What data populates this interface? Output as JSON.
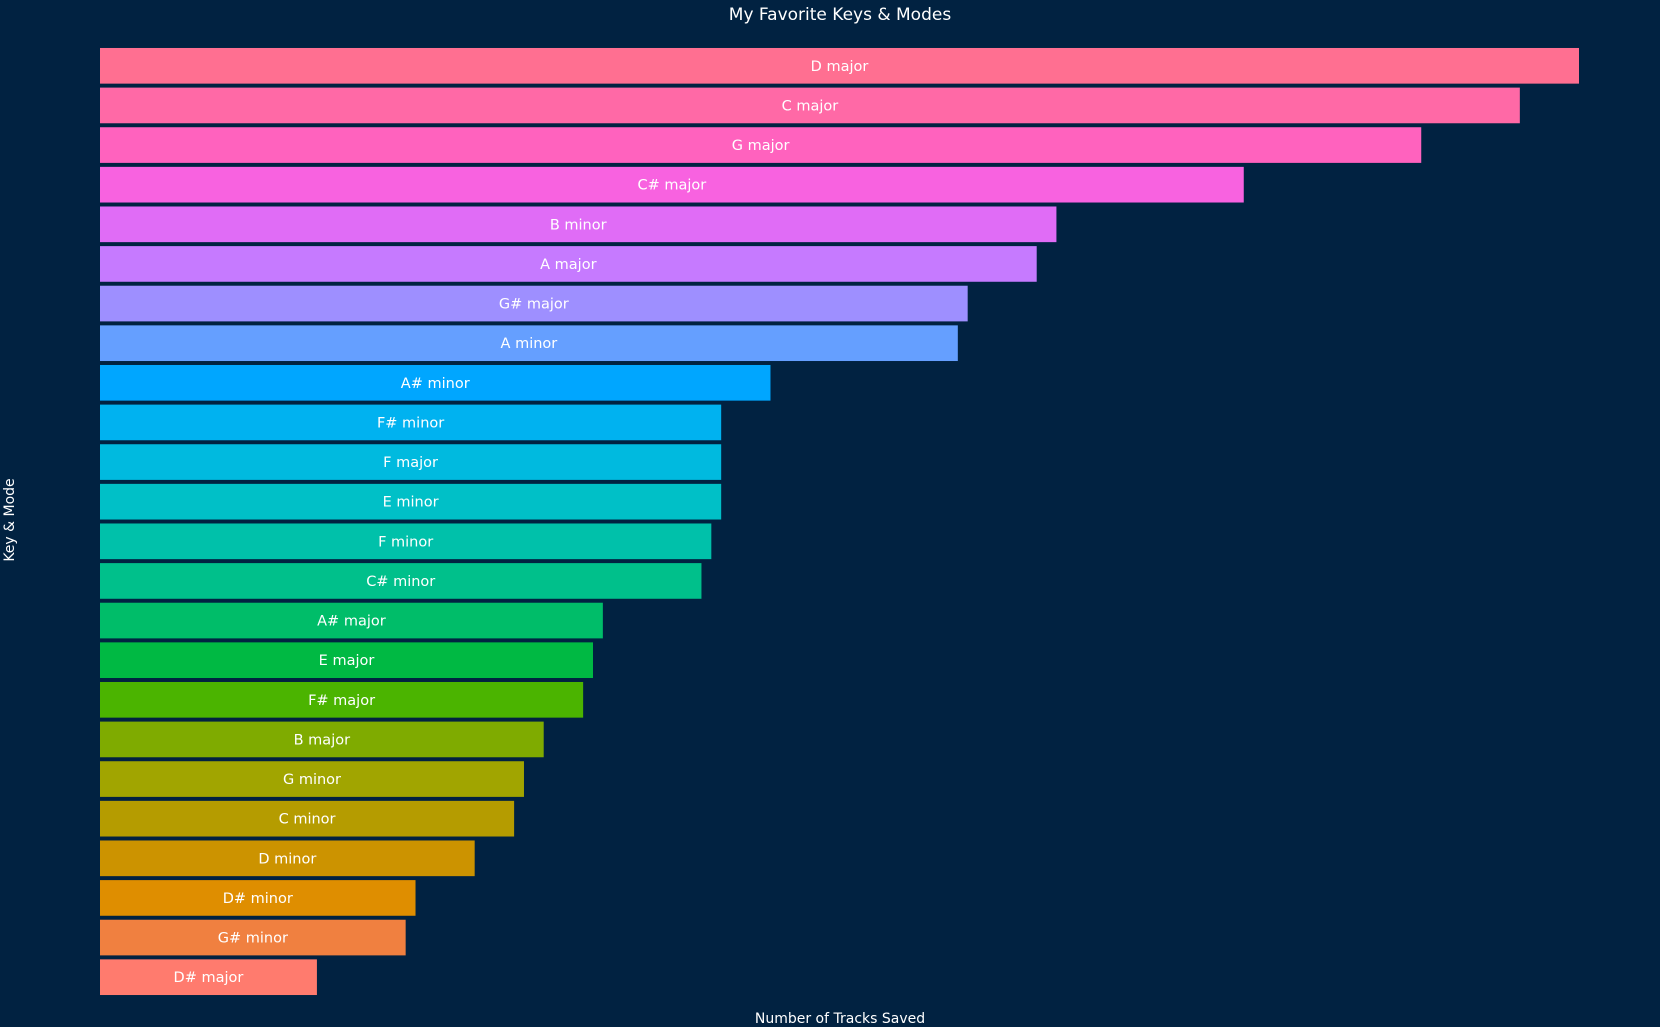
{
  "chart_data": {
    "type": "bar",
    "orientation": "horizontal",
    "title": "My Favorite Keys & Modes",
    "xlabel": "Number of Tracks Saved",
    "ylabel": "Key & Mode",
    "grid": false,
    "x_ticks_shown": false,
    "y_ticks_shown": false,
    "xlim": [
      0,
      150
    ],
    "categories": [
      "D major",
      "C major",
      "G major",
      "C# major",
      "B minor",
      "A major",
      "G# major",
      "A minor",
      "A# minor",
      "F# minor",
      "F major",
      "E minor",
      "F minor",
      "C# minor",
      "A# major",
      "E major",
      "F# major",
      "B major",
      "G minor",
      "C minor",
      "D minor",
      "D# minor",
      "G# minor",
      "D# major"
    ],
    "values": [
      150,
      144,
      134,
      116,
      97,
      95,
      88,
      87,
      68,
      63,
      63,
      63,
      62,
      61,
      51,
      50,
      49,
      45,
      43,
      42,
      38,
      32,
      31,
      22
    ],
    "colors": [
      "#FF6F91",
      "#FF69A6",
      "#FF62BE",
      "#F862E0",
      "#E06CF6",
      "#C67AFF",
      "#9E8FFF",
      "#659FFF",
      "#00A6FF",
      "#00B2F0",
      "#00BADF",
      "#00C0C7",
      "#00C1AA",
      "#00C08B",
      "#00BD69",
      "#00B943",
      "#4BB400",
      "#7FAB00",
      "#A1A500",
      "#B59C00",
      "#CC9300",
      "#DF8E00",
      "#F08040",
      "#FF7B6E"
    ],
    "background": "#012241",
    "text_color": "#ffffff"
  }
}
